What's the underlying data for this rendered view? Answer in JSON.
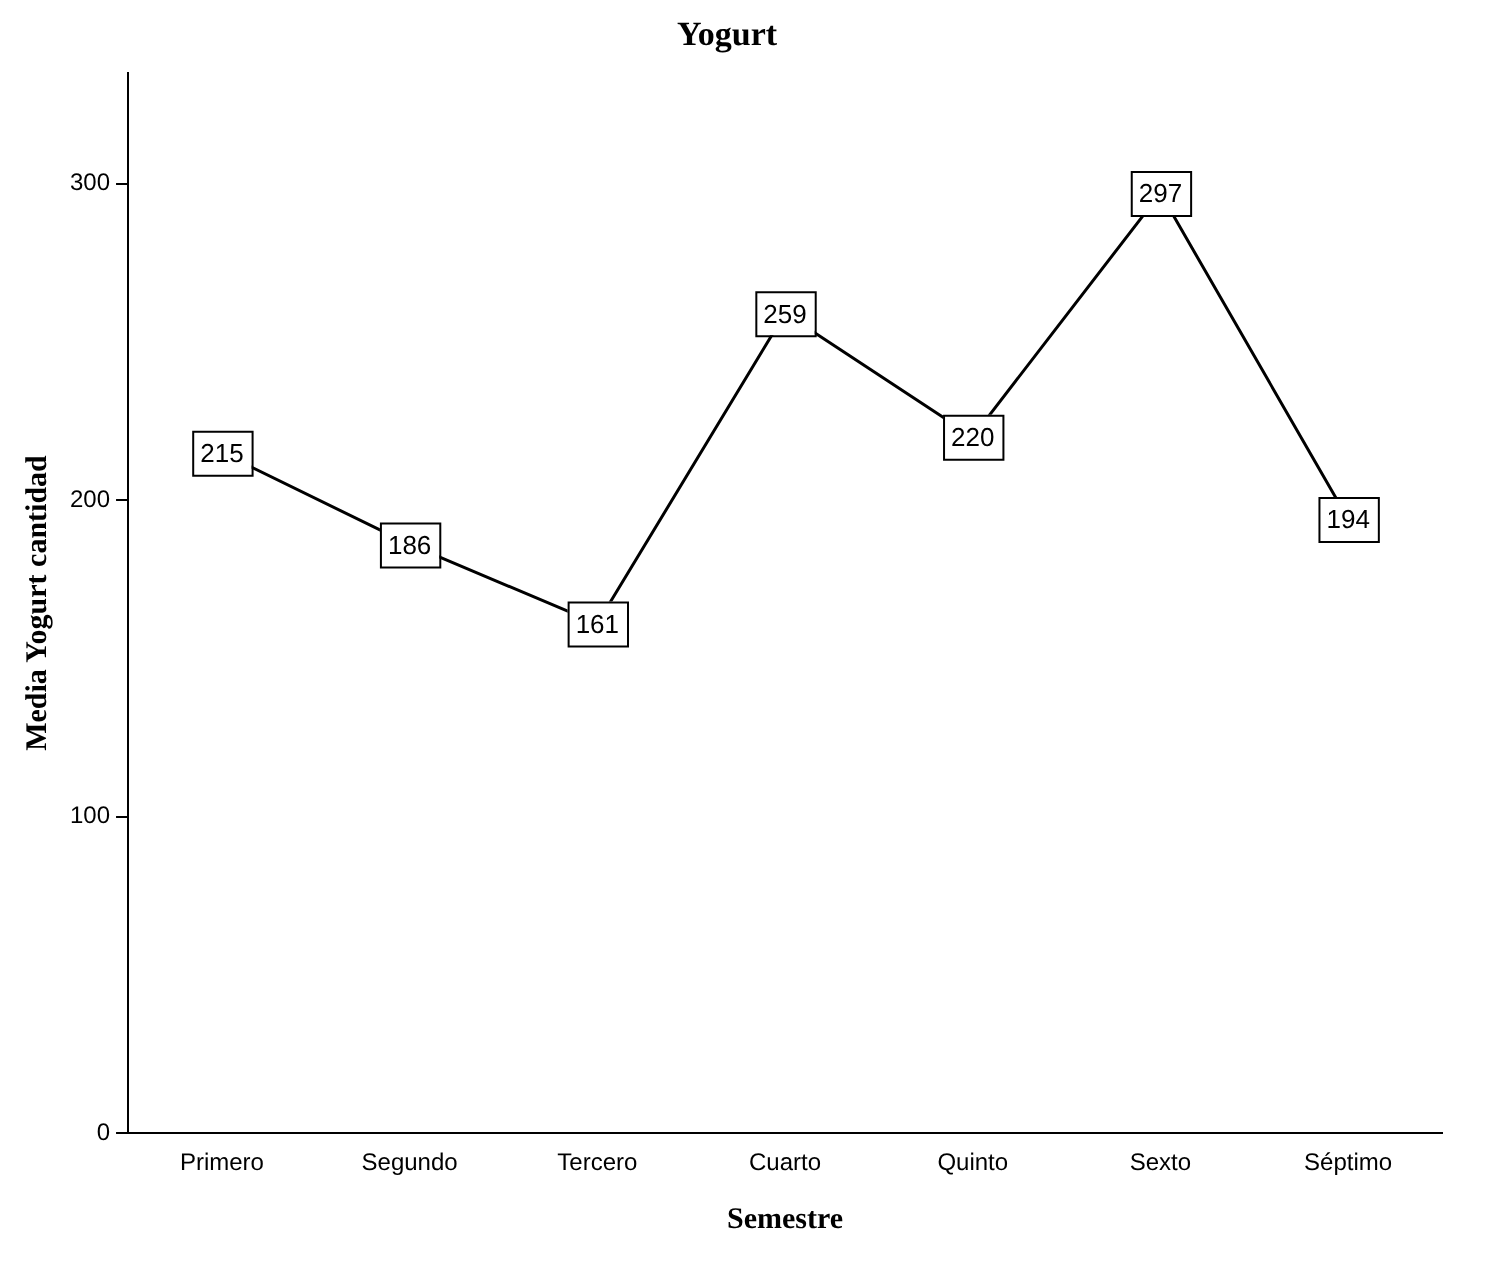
{
  "chart_data": {
    "type": "line",
    "title": "Yogurt",
    "xlabel": "Semestre",
    "ylabel": "Media Yogurt cantidad",
    "categories": [
      "Primero",
      "Segundo",
      "Tercero",
      "Cuarto",
      "Quinto",
      "Sexto",
      "Séptimo"
    ],
    "series": [
      {
        "color": "#000000",
        "values": [
          215,
          186,
          161,
          259,
          220,
          297,
          194
        ]
      }
    ],
    "ylim": [
      0,
      335
    ],
    "yticks": [
      0,
      100,
      200,
      300
    ],
    "grid": false,
    "legend": false,
    "marker": "square",
    "line_style": "solid",
    "data_labels": true
  }
}
